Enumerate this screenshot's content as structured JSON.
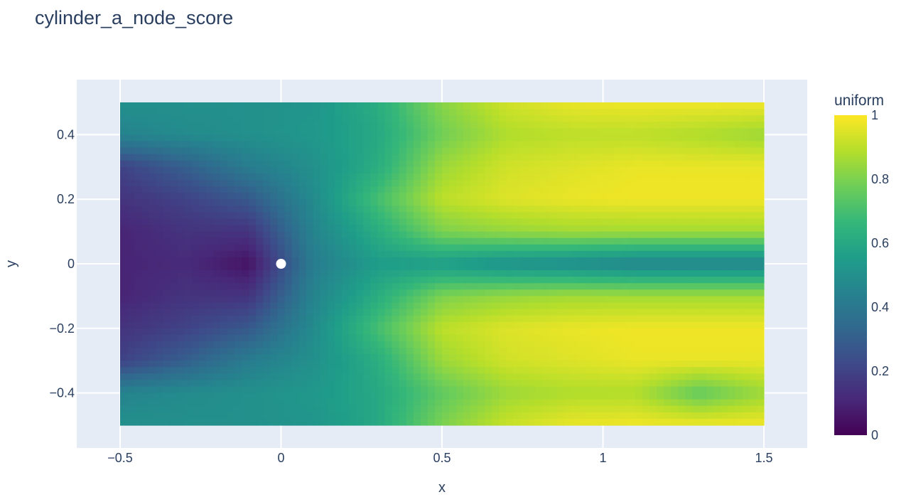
{
  "chart_data": {
    "type": "heatmap",
    "title": "cylinder_a_node_score",
    "xlabel": "x",
    "ylabel": "y",
    "xlim": [
      -0.5,
      1.5
    ],
    "ylim": [
      -0.5,
      0.5
    ],
    "x_ticks": [
      {
        "value": -0.5,
        "label": "−0.5"
      },
      {
        "value": 0,
        "label": "0"
      },
      {
        "value": 0.5,
        "label": "0.5"
      },
      {
        "value": 1,
        "label": "1"
      },
      {
        "value": 1.5,
        "label": "1.5"
      }
    ],
    "y_ticks": [
      {
        "value": 0.4,
        "label": "0.4"
      },
      {
        "value": 0.2,
        "label": "0.2"
      },
      {
        "value": 0,
        "label": "0"
      },
      {
        "value": -0.2,
        "label": "−0.2"
      },
      {
        "value": -0.4,
        "label": "−0.4"
      }
    ],
    "colorbar": {
      "title": "uniform",
      "range": [
        0,
        1
      ],
      "ticks": [
        {
          "value": 1,
          "label": "1"
        },
        {
          "value": 0.8,
          "label": "0.8"
        },
        {
          "value": 0.6,
          "label": "0.6"
        },
        {
          "value": 0.4,
          "label": "0.4"
        },
        {
          "value": 0.2,
          "label": "0.2"
        },
        {
          "value": 0,
          "label": "0"
        }
      ],
      "colorscale": "Viridis"
    },
    "obstacle": {
      "shape": "circle",
      "x": 0,
      "y": 0,
      "r": 0.015
    },
    "field": {
      "description_points_x": [
        -0.5,
        -0.3,
        -0.1,
        0.1,
        0.3,
        0.5,
        0.7,
        0.9,
        1.1,
        1.3,
        1.5
      ],
      "description_points_y": [
        0.5,
        0.4,
        0.3,
        0.2,
        0.1,
        0,
        -0.1,
        -0.2,
        -0.3,
        -0.4,
        -0.5
      ],
      "values": [
        [
          0.5,
          0.5,
          0.5,
          0.52,
          0.62,
          0.82,
          0.93,
          0.97,
          0.98,
          0.98,
          0.98
        ],
        [
          0.45,
          0.48,
          0.5,
          0.53,
          0.6,
          0.78,
          0.88,
          0.9,
          0.9,
          0.88,
          0.85
        ],
        [
          0.2,
          0.3,
          0.42,
          0.5,
          0.62,
          0.85,
          0.93,
          0.95,
          0.97,
          0.97,
          0.97
        ],
        [
          0.15,
          0.2,
          0.28,
          0.48,
          0.7,
          0.9,
          0.95,
          0.97,
          0.98,
          0.98,
          0.98
        ],
        [
          0.1,
          0.15,
          0.15,
          0.45,
          0.62,
          0.8,
          0.84,
          0.86,
          0.86,
          0.86,
          0.86
        ],
        [
          0.1,
          0.12,
          0.05,
          0.42,
          0.55,
          0.55,
          0.5,
          0.48,
          0.45,
          0.45,
          0.45
        ],
        [
          0.1,
          0.15,
          0.15,
          0.45,
          0.62,
          0.8,
          0.84,
          0.86,
          0.86,
          0.86,
          0.86
        ],
        [
          0.15,
          0.2,
          0.28,
          0.48,
          0.7,
          0.9,
          0.95,
          0.97,
          0.98,
          0.98,
          0.98
        ],
        [
          0.2,
          0.3,
          0.42,
          0.5,
          0.62,
          0.85,
          0.93,
          0.95,
          0.97,
          0.97,
          0.97
        ],
        [
          0.45,
          0.48,
          0.5,
          0.53,
          0.6,
          0.75,
          0.85,
          0.88,
          0.88,
          0.75,
          0.85
        ],
        [
          0.5,
          0.5,
          0.5,
          0.52,
          0.6,
          0.8,
          0.92,
          0.97,
          0.98,
          0.98,
          0.98
        ]
      ]
    }
  }
}
